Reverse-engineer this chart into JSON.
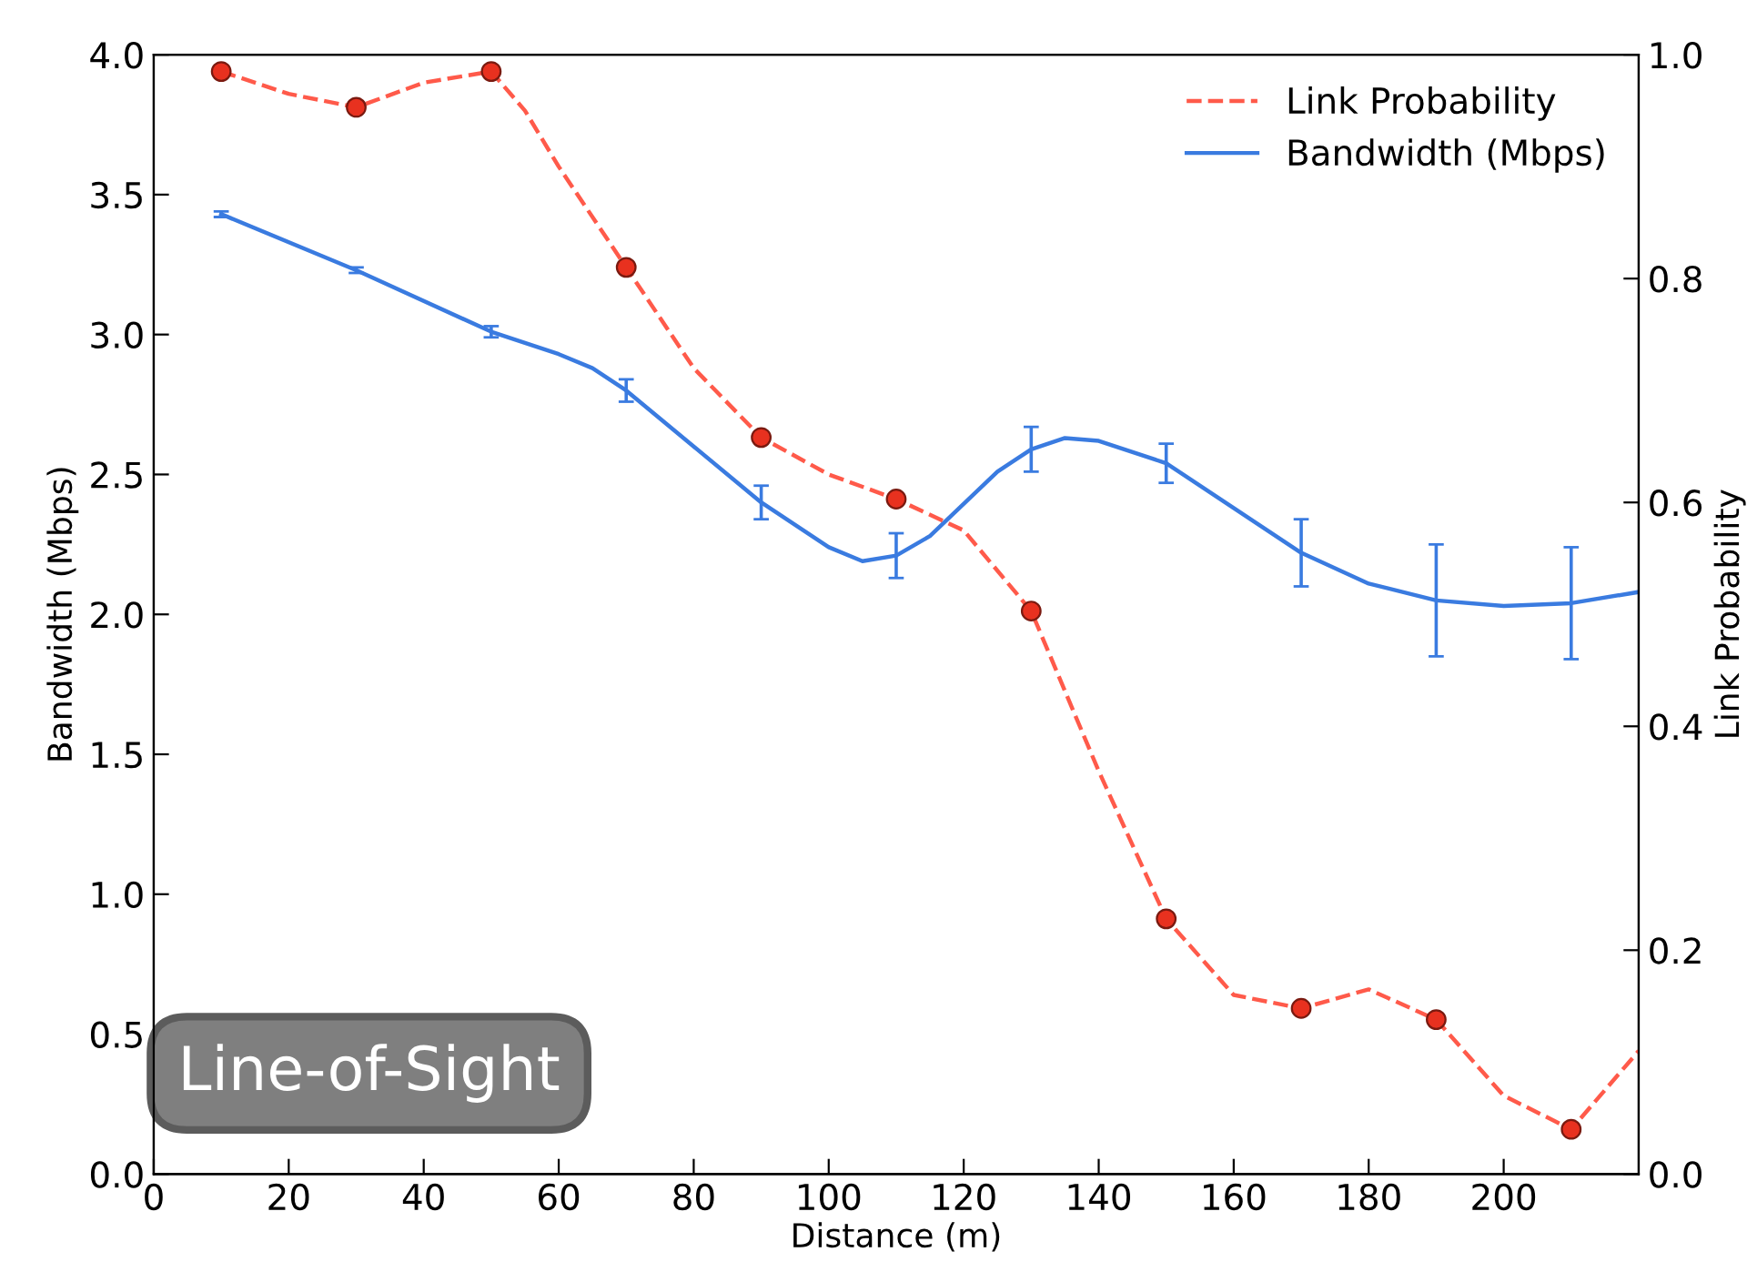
{
  "chart_data": {
    "type": "line",
    "xlabel": "Distance (m)",
    "ylabel": "Bandwidth (Mbps)",
    "y2label": "Link Probability",
    "xlim": [
      0,
      220
    ],
    "xticks": [
      0,
      20,
      40,
      60,
      80,
      100,
      120,
      140,
      160,
      180,
      200
    ],
    "ylim": [
      0,
      4.0
    ],
    "yticks": [
      {
        "value": 0,
        "label": "0.0"
      },
      0.5,
      {
        "value": 1,
        "label": "1.0"
      },
      1.5,
      {
        "value": 2,
        "label": "2.0"
      },
      2.5,
      {
        "value": 3,
        "label": "3.0"
      },
      3.5,
      {
        "value": 4,
        "label": "4.0"
      }
    ],
    "y2lim": [
      0,
      1.0
    ],
    "y2ticks": [
      {
        "value": 0,
        "label": "0.0"
      },
      0.2,
      0.4,
      0.6,
      0.8,
      {
        "value": 1,
        "label": "1.0"
      }
    ],
    "grid": false,
    "legend": "top right",
    "annotations": [
      "Line-of-Sight"
    ],
    "series": [
      {
        "name": "Link Probability",
        "axis": "y2",
        "color": "#ff5a4a",
        "line_style": "dashed",
        "marker": "none",
        "x": [
          10,
          20,
          30,
          40,
          50,
          55,
          60,
          70,
          80,
          90,
          100,
          110,
          120,
          130,
          140,
          150,
          160,
          170,
          180,
          190,
          200,
          210,
          220
        ],
        "values": [
          0.985,
          0.965,
          0.953,
          0.975,
          0.985,
          0.95,
          0.9,
          0.81,
          0.72,
          0.658,
          0.625,
          0.603,
          0.575,
          0.503,
          0.36,
          0.228,
          0.16,
          0.148,
          0.165,
          0.138,
          0.07,
          0.04,
          0.11
        ]
      },
      {
        "name": "Bandwidth (Mbps)",
        "color": "#3a7be0",
        "line_style": "solid",
        "marker": "none",
        "x": [
          10,
          30,
          50,
          60,
          65,
          70,
          80,
          90,
          100,
          105,
          110,
          115,
          125,
          130,
          135,
          140,
          150,
          160,
          170,
          180,
          190,
          200,
          210,
          220
        ],
        "values": [
          3.43,
          3.23,
          3.01,
          2.93,
          2.88,
          2.8,
          2.6,
          2.4,
          2.24,
          2.19,
          2.21,
          2.28,
          2.51,
          2.59,
          2.63,
          2.62,
          2.54,
          2.38,
          2.22,
          2.11,
          2.05,
          2.03,
          2.04,
          2.08
        ],
        "errors": [
          0.01,
          0.01,
          0.02,
          null,
          null,
          0.04,
          null,
          0.06,
          null,
          null,
          0.08,
          null,
          null,
          0.08,
          null,
          null,
          0.07,
          null,
          0.12,
          null,
          0.2,
          null,
          0.2,
          null
        ]
      },
      {
        "type": "scatter",
        "axis": "y2",
        "color": "#e8311f",
        "marker": "circle",
        "x": [
          10,
          30,
          50,
          70,
          90,
          110,
          130,
          150,
          170,
          190,
          210
        ],
        "values": [
          0.985,
          0.953,
          0.985,
          0.81,
          0.658,
          0.603,
          0.503,
          0.228,
          0.148,
          0.138,
          0.04
        ]
      }
    ]
  }
}
